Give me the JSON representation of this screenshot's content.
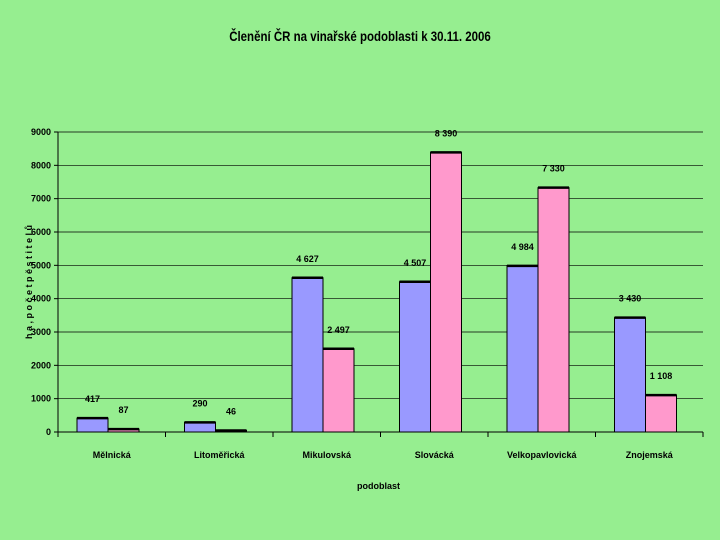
{
  "chart_data": {
    "type": "bar",
    "title": "Členění ČR na vinařské podoblasti  k 30.11. 2006",
    "xlabel": "podoblast",
    "ylabel": "h a , p o č e t  p ě s t i t e l ů",
    "ylim": [
      0,
      9000
    ],
    "yticks": [
      "0",
      "1000",
      "2000",
      "3000",
      "4000",
      "5000",
      "6000",
      "7000",
      "8000",
      "9000"
    ],
    "grid": true,
    "legend": "none",
    "categories": [
      "Mělnická",
      "Litoměřická",
      "Mikulovská",
      "Slovácká",
      "Velkopavlovická",
      "Znojemská"
    ],
    "series": [
      {
        "values": [
          417,
          290,
          4627,
          4507,
          4984,
          3430
        ],
        "labels": [
          "417",
          "290",
          "4 627",
          "4 507",
          "4 984",
          "3 430"
        ],
        "color": "#9999ff"
      },
      {
        "values": [
          87,
          46,
          2497,
          8390,
          7330,
          1108
        ],
        "labels": [
          "87",
          "46",
          "2 497",
          "8 390",
          "7 330",
          "1 108"
        ],
        "color": "#ff99cc"
      }
    ]
  },
  "colors": {
    "background": "#96ee90",
    "axis": "#000000",
    "grid": "#000000"
  }
}
